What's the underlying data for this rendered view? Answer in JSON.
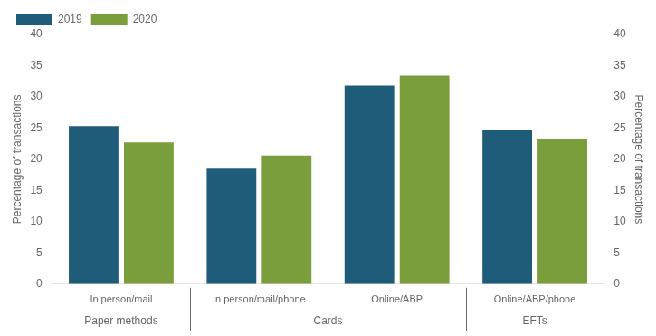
{
  "chart_data": {
    "type": "bar",
    "categories": [
      "In person/mail",
      "In person/mail/phone",
      "Online/ABP",
      "Online/ABP/phone"
    ],
    "series": [
      {
        "name": "2019",
        "color": "#1f5c7a",
        "values": [
          25.3,
          18.5,
          31.8,
          24.7
        ]
      },
      {
        "name": "2020",
        "color": "#7a9e3b",
        "values": [
          22.7,
          20.6,
          33.4,
          23.2
        ]
      }
    ],
    "ylabel": "Percentage of transactions",
    "y2label": "Percentage of transactions",
    "ylim": [
      0,
      40
    ],
    "yticks": [
      0,
      5,
      10,
      15,
      20,
      25,
      30,
      35,
      40
    ],
    "y2lim": [
      0,
      40
    ],
    "y2ticks": [
      0,
      5,
      10,
      15,
      20,
      25,
      30,
      35,
      40
    ],
    "annotations": [
      "Paper methods",
      "Cards",
      "EFTs"
    ],
    "grid": false,
    "legend": "upper left"
  }
}
